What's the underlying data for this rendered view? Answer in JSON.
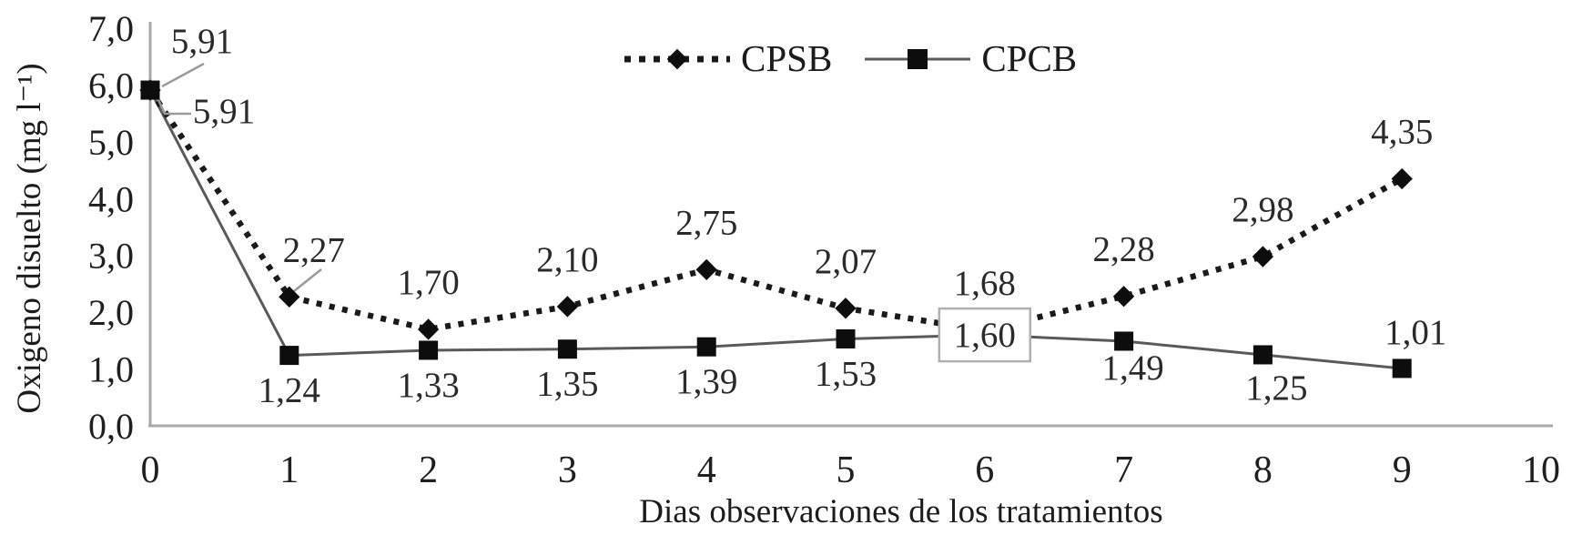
{
  "colors": {
    "background": "#ffffff",
    "axis": "#a9a9a9",
    "text": "#1f1f1f",
    "label_text": "#2a2a2a",
    "cpsb_line": "#1a1a1a",
    "cpcb_line": "#5a5a5a",
    "marker": "#0d0d0d",
    "leader": "#9b9b9b",
    "box_border": "#b0b0b0",
    "box_fill": "#ffffff"
  },
  "chart_data": {
    "type": "line",
    "title": "",
    "xlabel": "Dias observaciones de los tratamientos",
    "ylabel": "Oxigeno disuelto (mg l⁻¹)",
    "x": [
      0,
      1,
      2,
      3,
      4,
      5,
      6,
      7,
      8,
      9
    ],
    "xlim": [
      0,
      10
    ],
    "ylim": [
      0.0,
      7.0
    ],
    "x_ticks": [
      "0",
      "1",
      "2",
      "3",
      "4",
      "5",
      "6",
      "7",
      "8",
      "9",
      "10"
    ],
    "y_ticks": [
      "0,0",
      "1,0",
      "2,0",
      "3,0",
      "4,0",
      "5,0",
      "6,0",
      "7,0"
    ],
    "grid": false,
    "legend_position": "top-center",
    "series": [
      {
        "name": "CPSB",
        "style": "dotted",
        "marker": "diamond",
        "values": [
          5.91,
          2.27,
          1.7,
          2.1,
          2.75,
          2.07,
          1.68,
          2.28,
          2.98,
          4.35
        ],
        "labels": [
          "5,91",
          "2,27",
          "1,70",
          "2,10",
          "2,75",
          "2,07",
          "1,68",
          "2,28",
          "2,98",
          "4,35"
        ]
      },
      {
        "name": "CPCB",
        "style": "solid",
        "marker": "square",
        "values": [
          5.91,
          1.24,
          1.33,
          1.35,
          1.39,
          1.53,
          1.6,
          1.49,
          1.25,
          1.01
        ],
        "labels": [
          "5,91",
          "1,24",
          "1,33",
          "1,35",
          "1,39",
          "1,53",
          "1,60",
          "1,49",
          "1,25",
          "1,01"
        ]
      }
    ],
    "annotations": {
      "boxed_label": {
        "series": "CPCB",
        "x": 6,
        "text": "1,60"
      },
      "callouts": [
        {
          "series": "CPCB",
          "x": 0,
          "text": "5,91"
        },
        {
          "series": "CPSB",
          "x": 0,
          "text": "5,91"
        }
      ]
    }
  }
}
